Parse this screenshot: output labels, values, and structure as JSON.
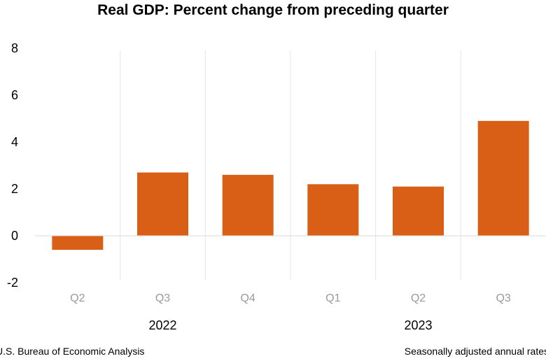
{
  "chart_data": {
    "type": "bar",
    "title": "Real GDP:  Percent change from preceding quarter",
    "categories": [
      "Q2",
      "Q3",
      "Q4",
      "Q1",
      "Q2",
      "Q3"
    ],
    "groups": [
      {
        "label": "2022",
        "categories": [
          "Q2",
          "Q3",
          "Q4"
        ]
      },
      {
        "label": "2023",
        "categories": [
          "Q1",
          "Q2",
          "Q3"
        ]
      }
    ],
    "values": [
      -0.6,
      2.7,
      2.6,
      2.2,
      2.1,
      4.9
    ],
    "ylim": [
      -2,
      8
    ],
    "yticks": [
      "-2",
      "0",
      "2",
      "4",
      "6",
      "8"
    ],
    "xlabel": "",
    "ylabel": "",
    "bar_color": "#d95f17",
    "gridlines": false
  },
  "footer": {
    "source": "U.S. Bureau of Economic Analysis",
    "note": "Seasonally adjusted annual rates"
  }
}
